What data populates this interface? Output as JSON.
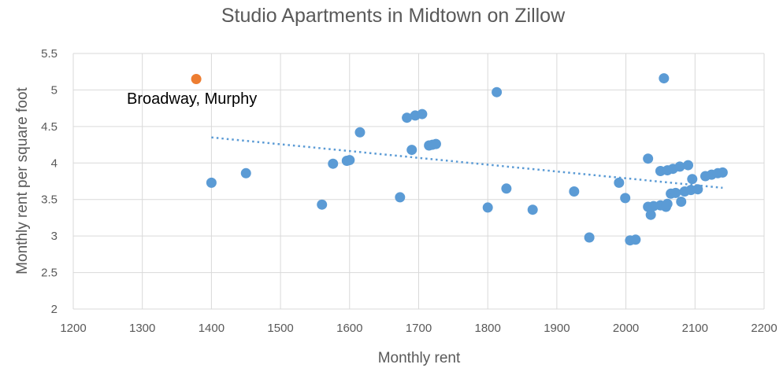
{
  "chart_data": {
    "type": "scatter",
    "title": "Studio Apartments in Midtown on Zillow",
    "xlabel": "Monthly rent",
    "ylabel": "Monthly rent per square foot",
    "xlim": [
      1200,
      2200
    ],
    "ylim": [
      2,
      5.5
    ],
    "x_ticks": [
      "1200",
      "1300",
      "1400",
      "1500",
      "1600",
      "1700",
      "1800",
      "1900",
      "2000",
      "2100",
      "2200"
    ],
    "y_ticks": [
      "2",
      "2.5",
      "3",
      "3.5",
      "4",
      "4.5",
      "5",
      "5.5"
    ],
    "grid": true,
    "legend": "none",
    "colors": {
      "points": "#5b9bd5",
      "highlight": "#ed7d31",
      "trendline": "#5b9bd5",
      "grid": "#d9d9d9",
      "text": "#595959"
    },
    "series": [
      {
        "points": [
          [
            1400,
            3.73
          ],
          [
            1450,
            3.86
          ],
          [
            1560,
            3.43
          ],
          [
            1576,
            3.99
          ],
          [
            1596,
            4.03
          ],
          [
            1600,
            4.04
          ],
          [
            1615,
            4.42
          ],
          [
            1673,
            3.53
          ],
          [
            1683,
            4.62
          ],
          [
            1690,
            4.18
          ],
          [
            1695,
            4.65
          ],
          [
            1705,
            4.67
          ],
          [
            1715,
            4.24
          ],
          [
            1720,
            4.25
          ],
          [
            1725,
            4.26
          ],
          [
            1800,
            3.39
          ],
          [
            1813,
            4.97
          ],
          [
            1827,
            3.65
          ],
          [
            1865,
            3.36
          ],
          [
            1925,
            3.61
          ],
          [
            1947,
            2.98
          ],
          [
            1990,
            3.73
          ],
          [
            1999,
            3.52
          ],
          [
            2006,
            2.94
          ],
          [
            2014,
            2.95
          ],
          [
            2032,
            4.06
          ],
          [
            2032,
            3.4
          ],
          [
            2036,
            3.29
          ],
          [
            2040,
            3.41
          ],
          [
            2050,
            3.89
          ],
          [
            2050,
            3.42
          ],
          [
            2055,
            5.16
          ],
          [
            2058,
            3.4
          ],
          [
            2060,
            3.9
          ],
          [
            2060,
            3.44
          ],
          [
            2065,
            3.58
          ],
          [
            2068,
            3.92
          ],
          [
            2072,
            3.59
          ],
          [
            2078,
            3.95
          ],
          [
            2080,
            3.47
          ],
          [
            2085,
            3.61
          ],
          [
            2090,
            3.97
          ],
          [
            2094,
            3.63
          ],
          [
            2096,
            3.78
          ],
          [
            2104,
            3.64
          ],
          [
            2115,
            3.82
          ],
          [
            2124,
            3.84
          ],
          [
            2133,
            3.86
          ],
          [
            2140,
            3.87
          ]
        ]
      },
      {
        "points": [
          [
            1378,
            5.15
          ]
        ],
        "annotation": "Broadway, Murphy"
      }
    ],
    "trendline": {
      "x": [
        1400,
        2140
      ],
      "y": [
        4.35,
        3.66
      ],
      "style": "dotted"
    }
  }
}
